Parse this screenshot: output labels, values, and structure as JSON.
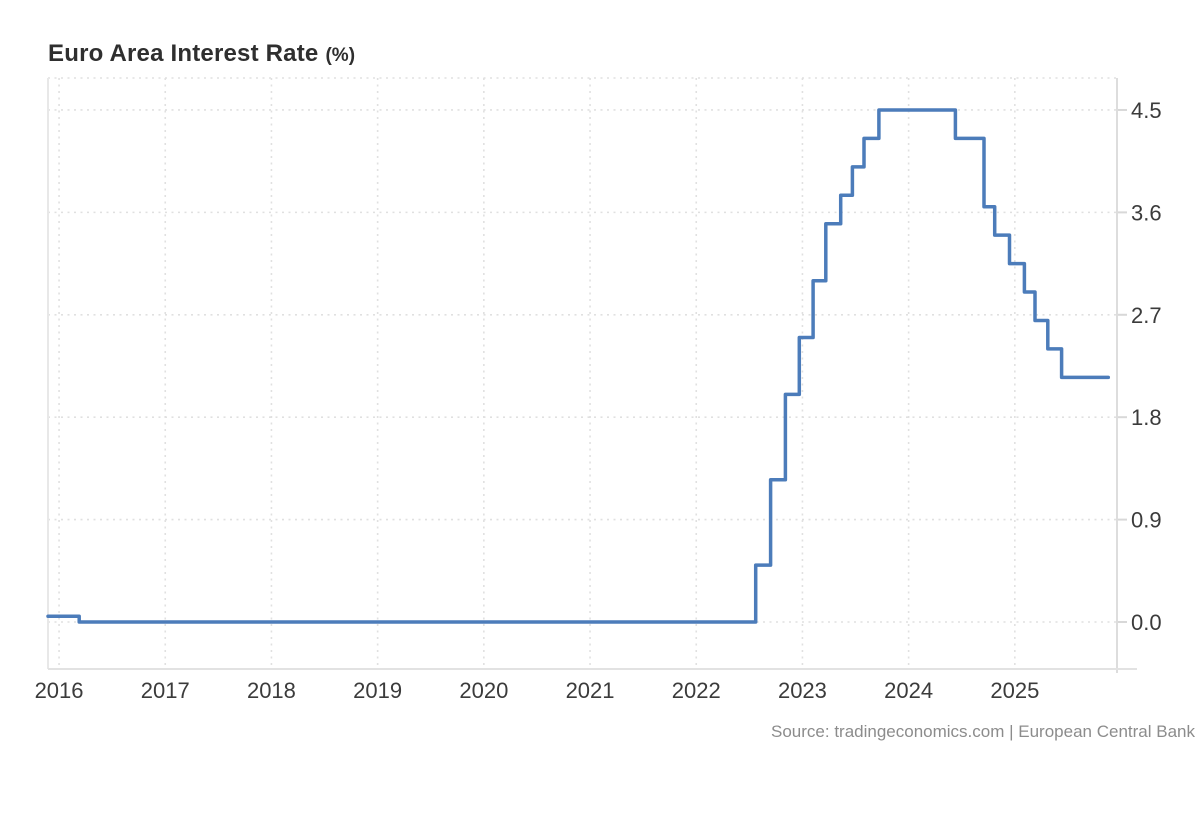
{
  "header": {
    "title": "Euro Area Interest Rate",
    "unit": "(%)"
  },
  "footer": {
    "source": "Source: tradingeconomics.com | European Central Bank"
  },
  "chart_data": {
    "type": "line",
    "line_style": "step-after",
    "title": "Euro Area Interest Rate (%)",
    "xlabel": "",
    "ylabel": "",
    "grid": "dotted",
    "legend_position": "none",
    "x_range": [
      2015.896,
      2025.962
    ],
    "y_range": [
      -0.413,
      4.781
    ],
    "x_ticks": [
      {
        "value": 2016,
        "label": "2016"
      },
      {
        "value": 2017,
        "label": "2017"
      },
      {
        "value": 2018,
        "label": "2018"
      },
      {
        "value": 2019,
        "label": "2019"
      },
      {
        "value": 2020,
        "label": "2020"
      },
      {
        "value": 2021,
        "label": "2021"
      },
      {
        "value": 2022,
        "label": "2022"
      },
      {
        "value": 2023,
        "label": "2023"
      },
      {
        "value": 2024,
        "label": "2024"
      },
      {
        "value": 2025,
        "label": "2025"
      }
    ],
    "y_ticks": [
      {
        "value": 0.0,
        "label": "0.0"
      },
      {
        "value": 0.9,
        "label": "0.9"
      },
      {
        "value": 1.8,
        "label": "1.8"
      },
      {
        "value": 2.7,
        "label": "2.7"
      },
      {
        "value": 3.6,
        "label": "3.6"
      },
      {
        "value": 4.5,
        "label": "4.5"
      }
    ],
    "series": [
      {
        "name": "Euro Area Interest Rate (%)",
        "color": "#4c7cba",
        "points": [
          [
            2015.896,
            0.05
          ],
          [
            2016.19,
            0.0
          ],
          [
            2022.56,
            0.5
          ],
          [
            2022.7,
            1.25
          ],
          [
            2022.84,
            2.0
          ],
          [
            2022.97,
            2.5
          ],
          [
            2023.1,
            3.0
          ],
          [
            2023.22,
            3.5
          ],
          [
            2023.36,
            3.75
          ],
          [
            2023.47,
            4.0
          ],
          [
            2023.58,
            4.25
          ],
          [
            2023.72,
            4.5
          ],
          [
            2024.44,
            4.25
          ],
          [
            2024.71,
            3.65
          ],
          [
            2024.81,
            3.4
          ],
          [
            2024.95,
            3.15
          ],
          [
            2025.09,
            2.9
          ],
          [
            2025.19,
            2.65
          ],
          [
            2025.31,
            2.4
          ],
          [
            2025.44,
            2.15
          ],
          [
            2025.88,
            2.15
          ]
        ]
      }
    ],
    "colors": {
      "line": "#4c7cba",
      "gridline": "#e0e0e0",
      "axis_line": "#dddddd",
      "tick": "#d8d8d8",
      "axis_label": "#3b3b3b",
      "title": "#2f2f2f",
      "source": "#8c8c8c",
      "background": "#ffffff"
    }
  }
}
